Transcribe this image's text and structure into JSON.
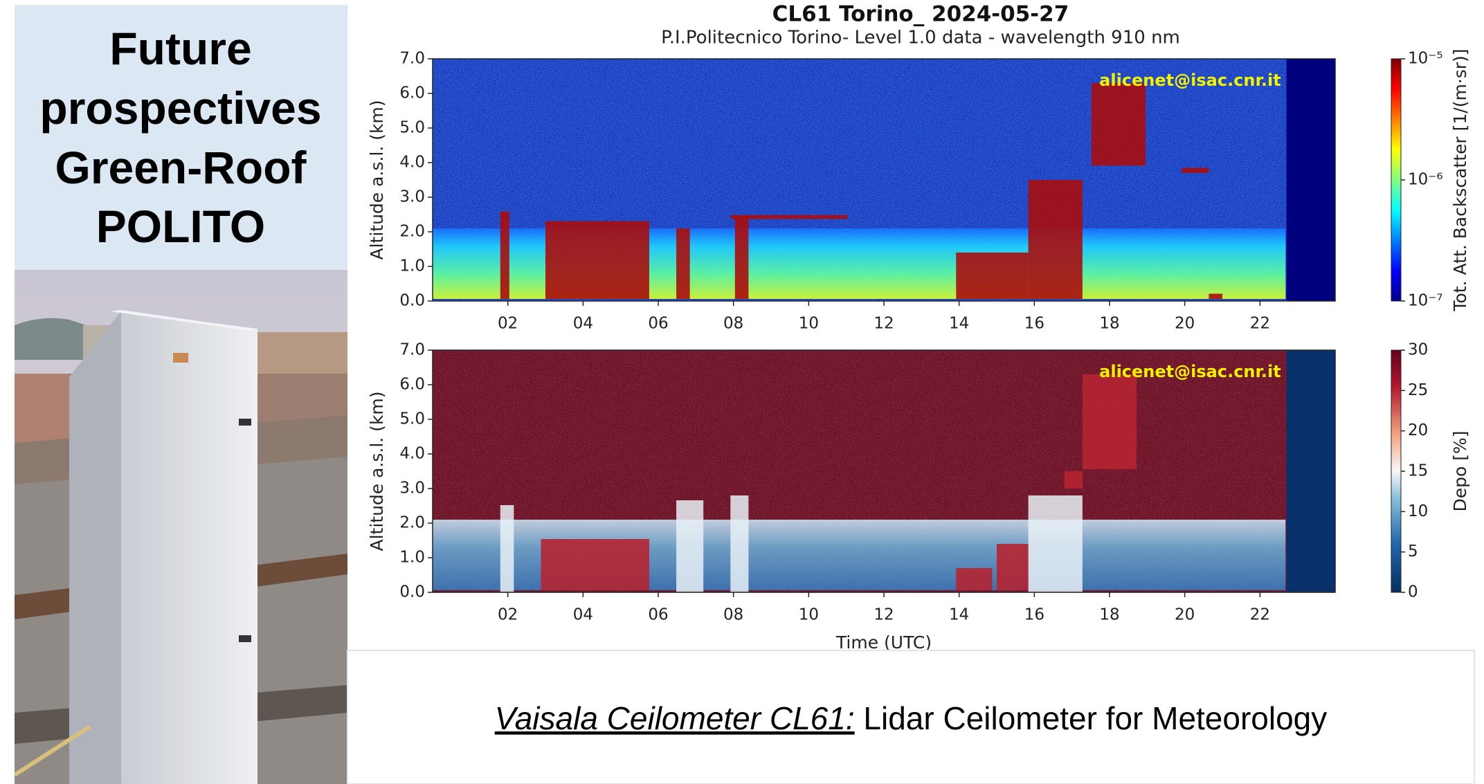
{
  "left_panel": {
    "title_lines": [
      "Future",
      "prospectives",
      "Green-Roof",
      "POLITO"
    ]
  },
  "figure": {
    "title": "CL61 Torino_ 2024-05-27",
    "subtitle": "P.I.Politecnico Torino- Level 1.0 data - wavelength 910 nm",
    "watermark": "alicenet@isac.cnr.it",
    "x_label": "Time (UTC)",
    "xlim": [
      0,
      24
    ],
    "xticks": [
      {
        "value": 2,
        "label": "02"
      },
      {
        "value": 4,
        "label": "04"
      },
      {
        "value": 6,
        "label": "06"
      },
      {
        "value": 8,
        "label": "08"
      },
      {
        "value": 10,
        "label": "10"
      },
      {
        "value": 12,
        "label": "12"
      },
      {
        "value": 14,
        "label": "14"
      },
      {
        "value": 16,
        "label": "16"
      },
      {
        "value": 18,
        "label": "18"
      },
      {
        "value": 20,
        "label": "20"
      },
      {
        "value": 22,
        "label": "22"
      }
    ],
    "panels": [
      {
        "y_label": "Altitude a.s.l. (km)",
        "ylim": [
          0,
          7
        ],
        "yticks": [
          {
            "value": 0,
            "label": "0.0"
          },
          {
            "value": 1,
            "label": "1.0"
          },
          {
            "value": 2,
            "label": "2.0"
          },
          {
            "value": 3,
            "label": "3.0"
          },
          {
            "value": 4,
            "label": "4.0"
          },
          {
            "value": 5,
            "label": "5.0"
          },
          {
            "value": 6,
            "label": "6.0"
          },
          {
            "value": 7,
            "label": "7.0"
          }
        ],
        "colorbar": {
          "label": "Tot. Att. Backscatter [1/(m·sr)]",
          "log_scale": true,
          "clim": [
            1e-07,
            1e-05
          ],
          "ticks": [
            {
              "value": 1e-07,
              "label": "10⁻⁷"
            },
            {
              "value": 1e-06,
              "label": "10⁻⁶"
            },
            {
              "value": 1e-05,
              "label": "10⁻⁵"
            }
          ],
          "colormap": "jet"
        }
      },
      {
        "y_label": "Altitude a.s.l. (km)",
        "ylim": [
          0,
          7
        ],
        "yticks": [
          {
            "value": 0,
            "label": "0.0"
          },
          {
            "value": 1,
            "label": "1.0"
          },
          {
            "value": 2,
            "label": "2.0"
          },
          {
            "value": 3,
            "label": "3.0"
          },
          {
            "value": 4,
            "label": "4.0"
          },
          {
            "value": 5,
            "label": "5.0"
          },
          {
            "value": 6,
            "label": "6.0"
          },
          {
            "value": 7,
            "label": "7.0"
          }
        ],
        "colorbar": {
          "label": "Depo [%]",
          "log_scale": false,
          "clim": [
            0,
            30
          ],
          "ticks": [
            0,
            5,
            10,
            15,
            20,
            25,
            30
          ],
          "colormap": "rdbu"
        }
      }
    ]
  },
  "caption": {
    "italic_part": "Vaisala Ceilometer CL61:",
    "rest": " Lidar Ceilometer for Meteorology"
  }
}
